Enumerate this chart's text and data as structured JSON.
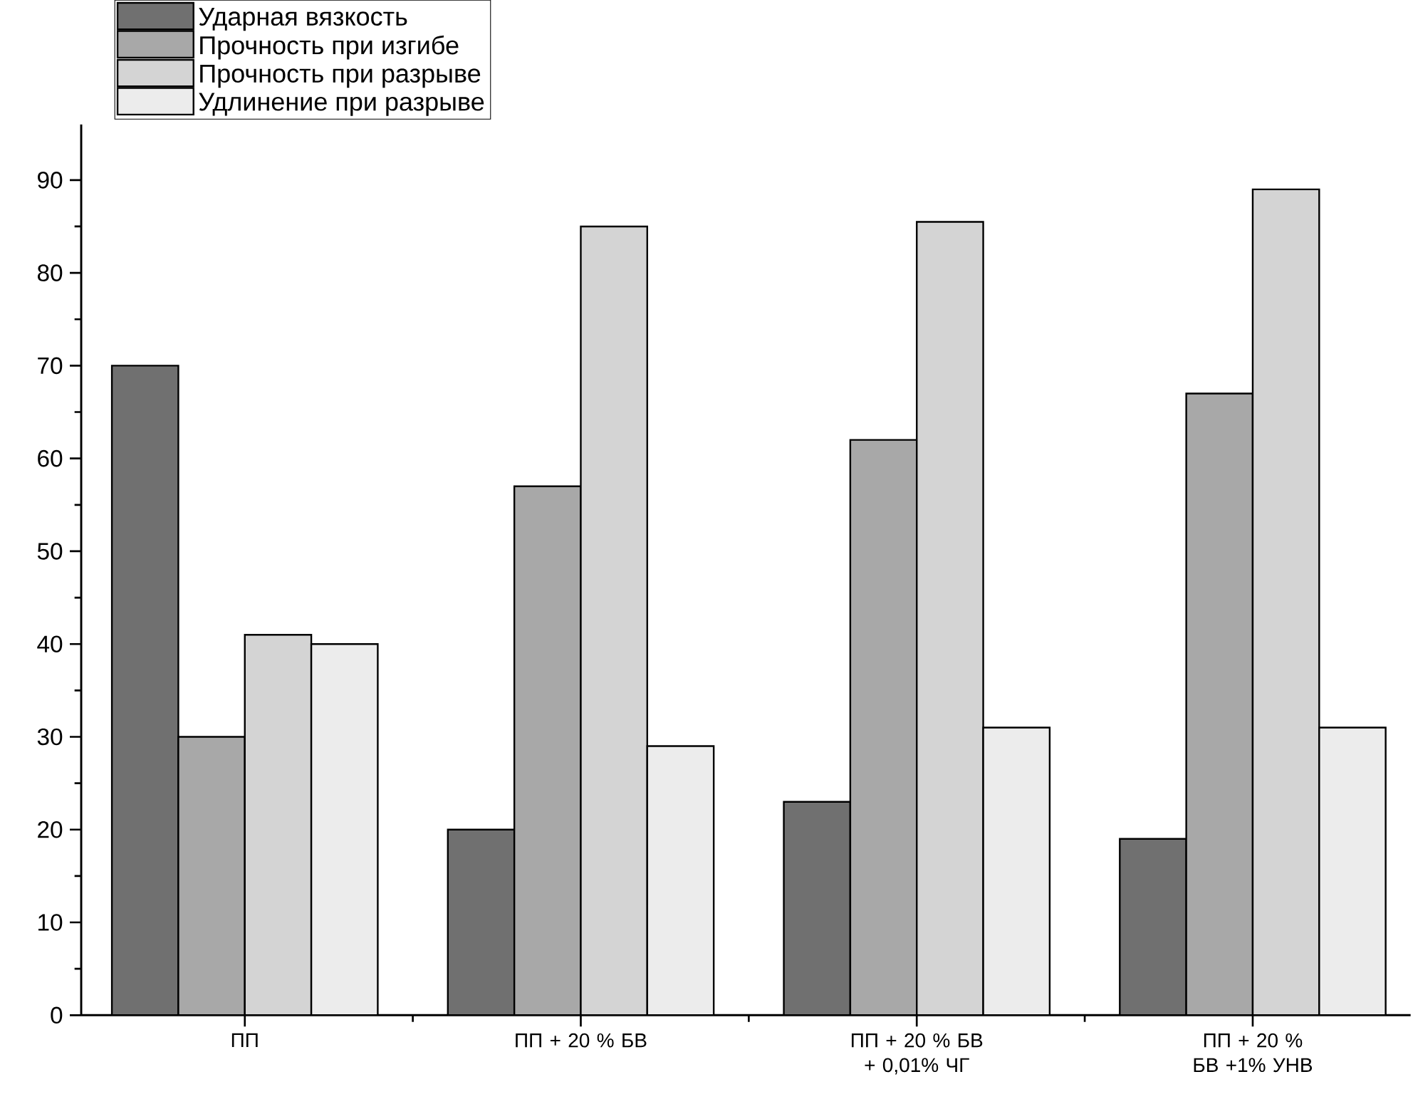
{
  "chart_data": {
    "type": "bar",
    "categories": [
      "ПП",
      "ПП + 20 % БВ",
      "ПП + 20 % БВ + 0,01% ЧГ",
      "ПП + 20 % БВ +1% УНВ"
    ],
    "series": [
      {
        "name": "Ударная вязкость",
        "color": "#707070",
        "values": [
          70,
          20,
          23,
          19
        ]
      },
      {
        "name": "Прочность при изгибе",
        "color": "#a8a8a8",
        "values": [
          30,
          57,
          62,
          67
        ]
      },
      {
        "name": "Прочность при разрыве",
        "color": "#d4d4d4",
        "values": [
          41,
          85,
          85.5,
          89
        ]
      },
      {
        "name": "Удлинение при разрыве",
        "color": "#ececec",
        "values": [
          40,
          29,
          31,
          31
        ]
      }
    ],
    "ylim": [
      0,
      96
    ],
    "yticks": [
      0,
      10,
      20,
      30,
      40,
      50,
      60,
      70,
      80,
      90
    ],
    "grid": false,
    "legend": "top left"
  }
}
